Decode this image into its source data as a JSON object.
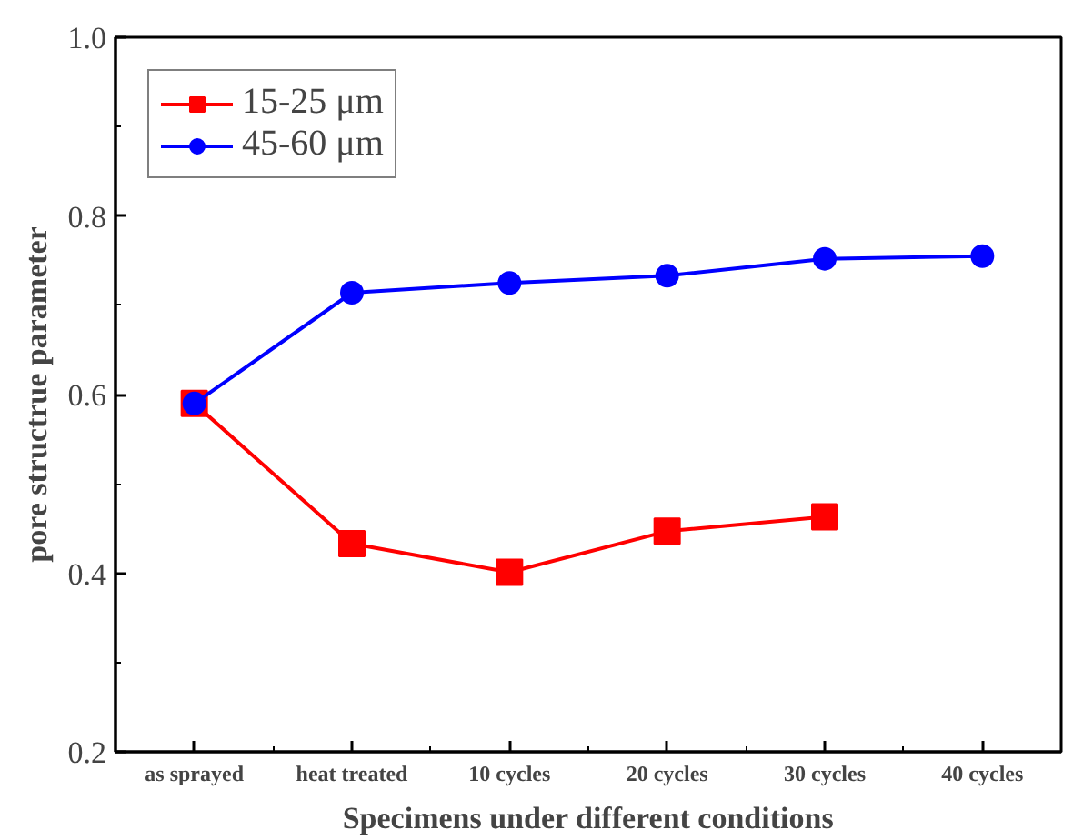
{
  "chart_data": {
    "type": "line",
    "xlabel": "Specimens under different conditions",
    "ylabel": "pore structrue parameter",
    "categories": [
      "as sprayed",
      "heat treated",
      "10 cycles",
      "20 cycles",
      "30 cycles",
      "40 cycles"
    ],
    "ylim": [
      0.2,
      1.0
    ],
    "yticks": [
      {
        "value": 0.2,
        "label": "0.2"
      },
      {
        "value": 0.4,
        "label": "0.4"
      },
      {
        "value": 0.6,
        "label": "0.6"
      },
      {
        "value": 0.8,
        "label": "0.8"
      },
      {
        "value": 1.0,
        "label": "1.0"
      }
    ],
    "grid": false,
    "legend": "top left",
    "line_style": "solid",
    "series": [
      {
        "name": "15-25 μm",
        "color": "#ff0000",
        "marker": "square",
        "values": [
          0.59,
          0.433,
          0.401,
          0.447,
          0.463,
          null
        ]
      },
      {
        "name": "45-60 μm",
        "color": "#0000ff",
        "marker": "circle",
        "values": [
          0.59,
          0.714,
          0.725,
          0.733,
          0.752,
          0.755
        ]
      }
    ]
  }
}
